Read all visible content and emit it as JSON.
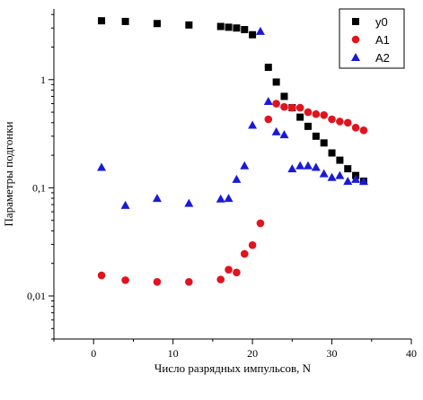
{
  "chart_data": {
    "type": "scatter",
    "xlabel": "Число разрядных импульсов, N",
    "ylabel": "Параметры подгонки",
    "xlim": [
      -5,
      40
    ],
    "ylim": [
      0.004,
      4.5
    ],
    "yscale": "log",
    "x_ticks": [
      0,
      10,
      20,
      30,
      40
    ],
    "x_tick_labels": [
      "0",
      "10",
      "20",
      "30",
      "40"
    ],
    "y_ticks": [
      0.01,
      0.1,
      1
    ],
    "y_tick_labels": [
      "0,01",
      "0,1",
      "1"
    ],
    "grid": false,
    "legend_position": "top-right",
    "series": [
      {
        "name": "y0",
        "marker": "square",
        "color": "#000000",
        "x": [
          1,
          4,
          8,
          12,
          16,
          17,
          18,
          19,
          20,
          22,
          23,
          24,
          25,
          26,
          27,
          28,
          29,
          30,
          31,
          32,
          33,
          34
        ],
        "y": [
          3.5,
          3.45,
          3.3,
          3.2,
          3.1,
          3.05,
          3.0,
          2.9,
          2.6,
          1.3,
          0.95,
          0.7,
          0.55,
          0.45,
          0.37,
          0.3,
          0.26,
          0.21,
          0.18,
          0.15,
          0.13,
          0.115
        ]
      },
      {
        "name": "A1",
        "marker": "circle",
        "color": "#e0141e",
        "x": [
          1,
          4,
          8,
          12,
          16,
          17,
          18,
          19,
          20,
          21,
          22,
          23,
          24,
          25,
          26,
          27,
          28,
          29,
          30,
          31,
          32,
          33,
          34
        ],
        "y": [
          0.0155,
          0.014,
          0.0135,
          0.0135,
          0.0142,
          0.0175,
          0.0165,
          0.0245,
          0.0295,
          0.047,
          0.43,
          0.6,
          0.56,
          0.55,
          0.55,
          0.5,
          0.48,
          0.47,
          0.43,
          0.41,
          0.4,
          0.36,
          0.34
        ]
      },
      {
        "name": "A2",
        "marker": "triangle",
        "color": "#1a1ad6",
        "x": [
          1,
          4,
          8,
          12,
          16,
          17,
          18,
          19,
          20,
          21,
          22,
          23,
          24,
          25,
          26,
          27,
          28,
          29,
          30,
          31,
          32,
          33,
          34
        ],
        "y": [
          0.155,
          0.069,
          0.08,
          0.072,
          0.079,
          0.08,
          0.12,
          0.16,
          0.38,
          2.8,
          0.63,
          0.33,
          0.31,
          0.15,
          0.16,
          0.16,
          0.155,
          0.135,
          0.125,
          0.13,
          0.115,
          0.12,
          0.115
        ]
      }
    ]
  }
}
